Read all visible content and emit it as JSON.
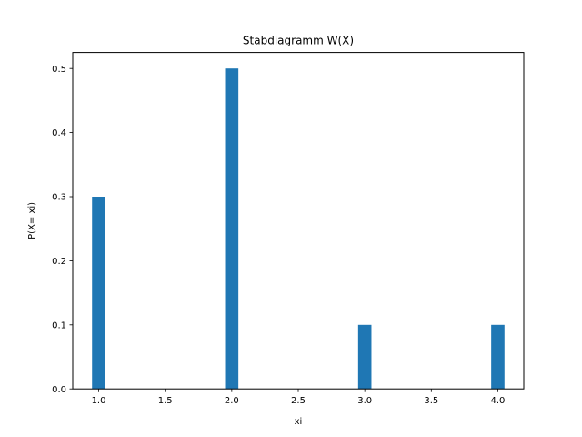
{
  "chart_data": {
    "type": "bar",
    "title": "Stabdiagramm W(X)",
    "xlabel": "xi",
    "ylabel": "P(X= xi)",
    "x": [
      1,
      2,
      3,
      4
    ],
    "values": [
      0.3,
      0.5,
      0.1,
      0.1
    ],
    "bar_width": 0.1,
    "xlim": [
      0.805,
      4.195
    ],
    "ylim": [
      0,
      0.525
    ],
    "xticks": [
      "1.0",
      "1.5",
      "2.0",
      "2.5",
      "3.0",
      "3.5",
      "4.0"
    ],
    "yticks": [
      "0.0",
      "0.1",
      "0.2",
      "0.3",
      "0.4",
      "0.5"
    ],
    "grid": false,
    "legend": "none",
    "bar_color": "#1f77b4"
  }
}
